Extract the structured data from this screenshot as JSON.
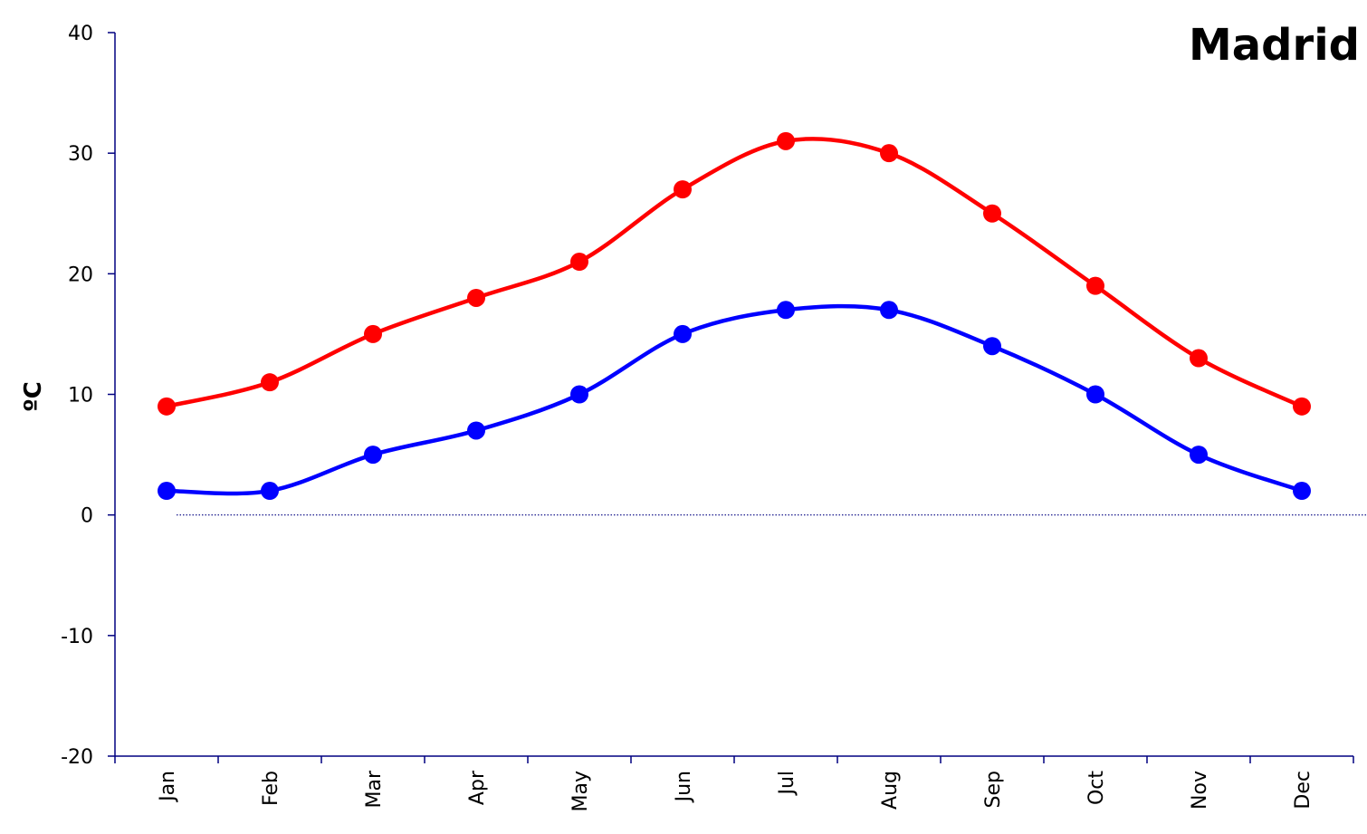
{
  "chart_data": {
    "type": "line",
    "title": "Madrid",
    "xlabel": "",
    "ylabel": "ºC",
    "categories": [
      "Jan",
      "Feb",
      "Mar",
      "Apr",
      "May",
      "Jun",
      "Jul",
      "Aug",
      "Sep",
      "Oct",
      "Nov",
      "Dec"
    ],
    "ylim": [
      -20,
      40
    ],
    "yticks": [
      -20,
      -10,
      0,
      10,
      20,
      30,
      40
    ],
    "ytick_labels": [
      "-20",
      "-10",
      "0",
      "10",
      "20",
      "30",
      "40"
    ],
    "grid": false,
    "reference_line": {
      "y": 0,
      "style": "dotted",
      "color": "#000080"
    },
    "series": [
      {
        "color": "#ff0000",
        "values": [
          9,
          11,
          15,
          18,
          21,
          27,
          31,
          30,
          25,
          19,
          13,
          9
        ]
      },
      {
        "color": "#0000ff",
        "values": [
          2,
          2,
          5,
          7,
          10,
          15,
          17,
          17,
          14,
          10,
          5,
          2
        ]
      }
    ],
    "axis_color": "#000080"
  }
}
